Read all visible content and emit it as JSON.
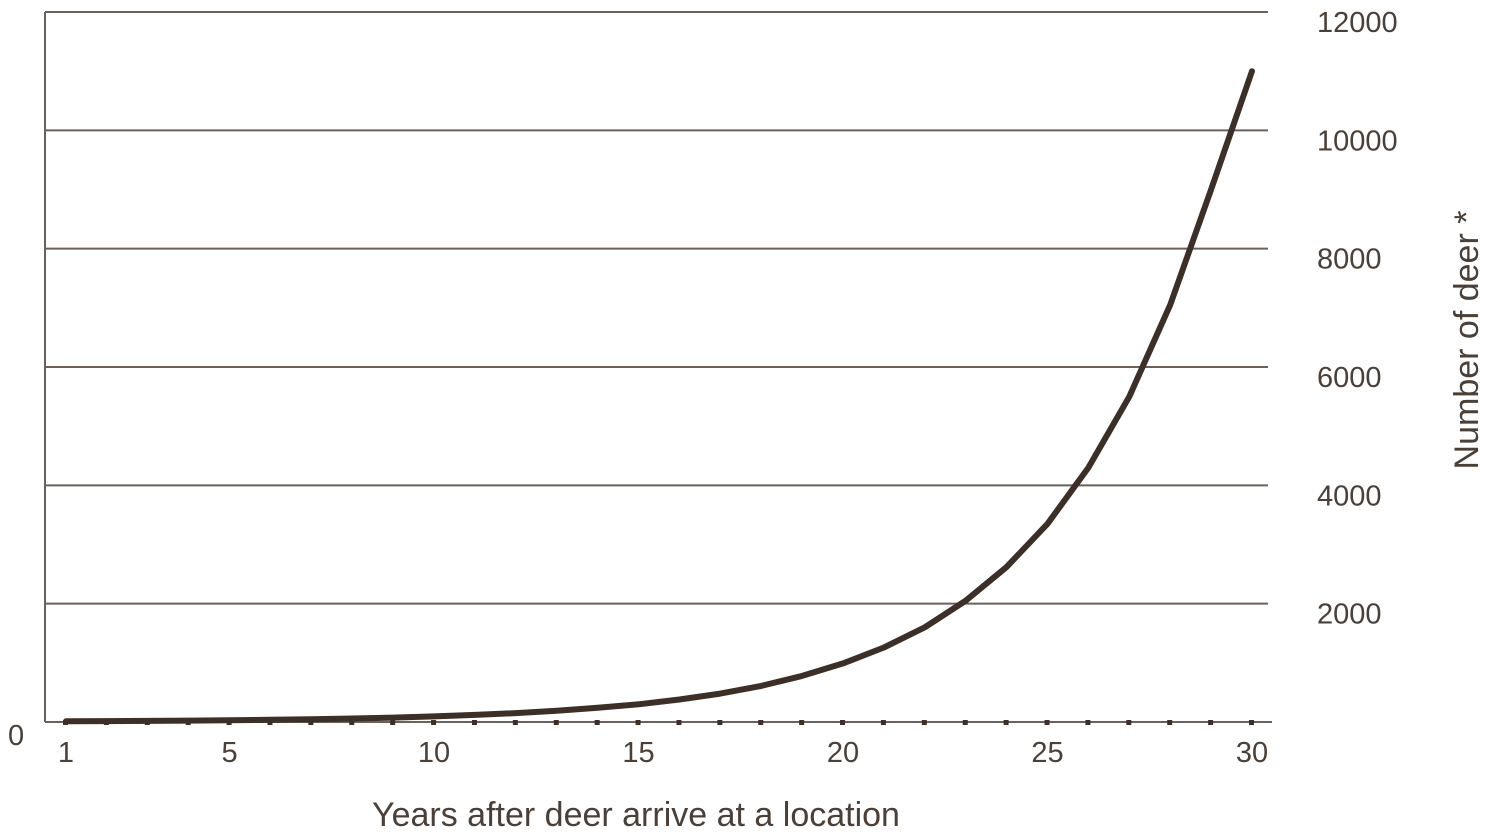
{
  "chart_data": {
    "type": "line",
    "title": "",
    "xlabel": "Years after deer arrive at a location",
    "ylabel": "Number of deer *",
    "xlim": [
      1,
      30
    ],
    "ylim": [
      0,
      12000
    ],
    "x_ticks": [
      "1",
      "5",
      "10",
      "15",
      "20",
      "25",
      "30"
    ],
    "y_ticks": [
      "2000",
      "4000",
      "6000",
      "8000",
      "10000",
      "12000"
    ],
    "zero_label": "0",
    "grid": true,
    "legend": "none",
    "y_axis_side": "right",
    "colors": {
      "line": "#3b2f27",
      "grid": "#6b615a",
      "text": "#4a4038"
    },
    "series": [
      {
        "values": [
          [
            1,
            12
          ],
          [
            2,
            15
          ],
          [
            3,
            19
          ],
          [
            4,
            24
          ],
          [
            5,
            30
          ],
          [
            6,
            38
          ],
          [
            7,
            48
          ],
          [
            8,
            60
          ],
          [
            9,
            75
          ],
          [
            10,
            95
          ],
          [
            11,
            120
          ],
          [
            12,
            150
          ],
          [
            13,
            190
          ],
          [
            14,
            240
          ],
          [
            15,
            300
          ],
          [
            16,
            380
          ],
          [
            17,
            480
          ],
          [
            18,
            610
          ],
          [
            19,
            780
          ],
          [
            20,
            990
          ],
          [
            21,
            1260
          ],
          [
            22,
            1600
          ],
          [
            23,
            2050
          ],
          [
            24,
            2620
          ],
          [
            25,
            3350
          ],
          [
            26,
            4300
          ],
          [
            27,
            5500
          ],
          [
            28,
            7050
          ],
          [
            29,
            9000
          ],
          [
            30,
            11000
          ]
        ]
      }
    ]
  }
}
